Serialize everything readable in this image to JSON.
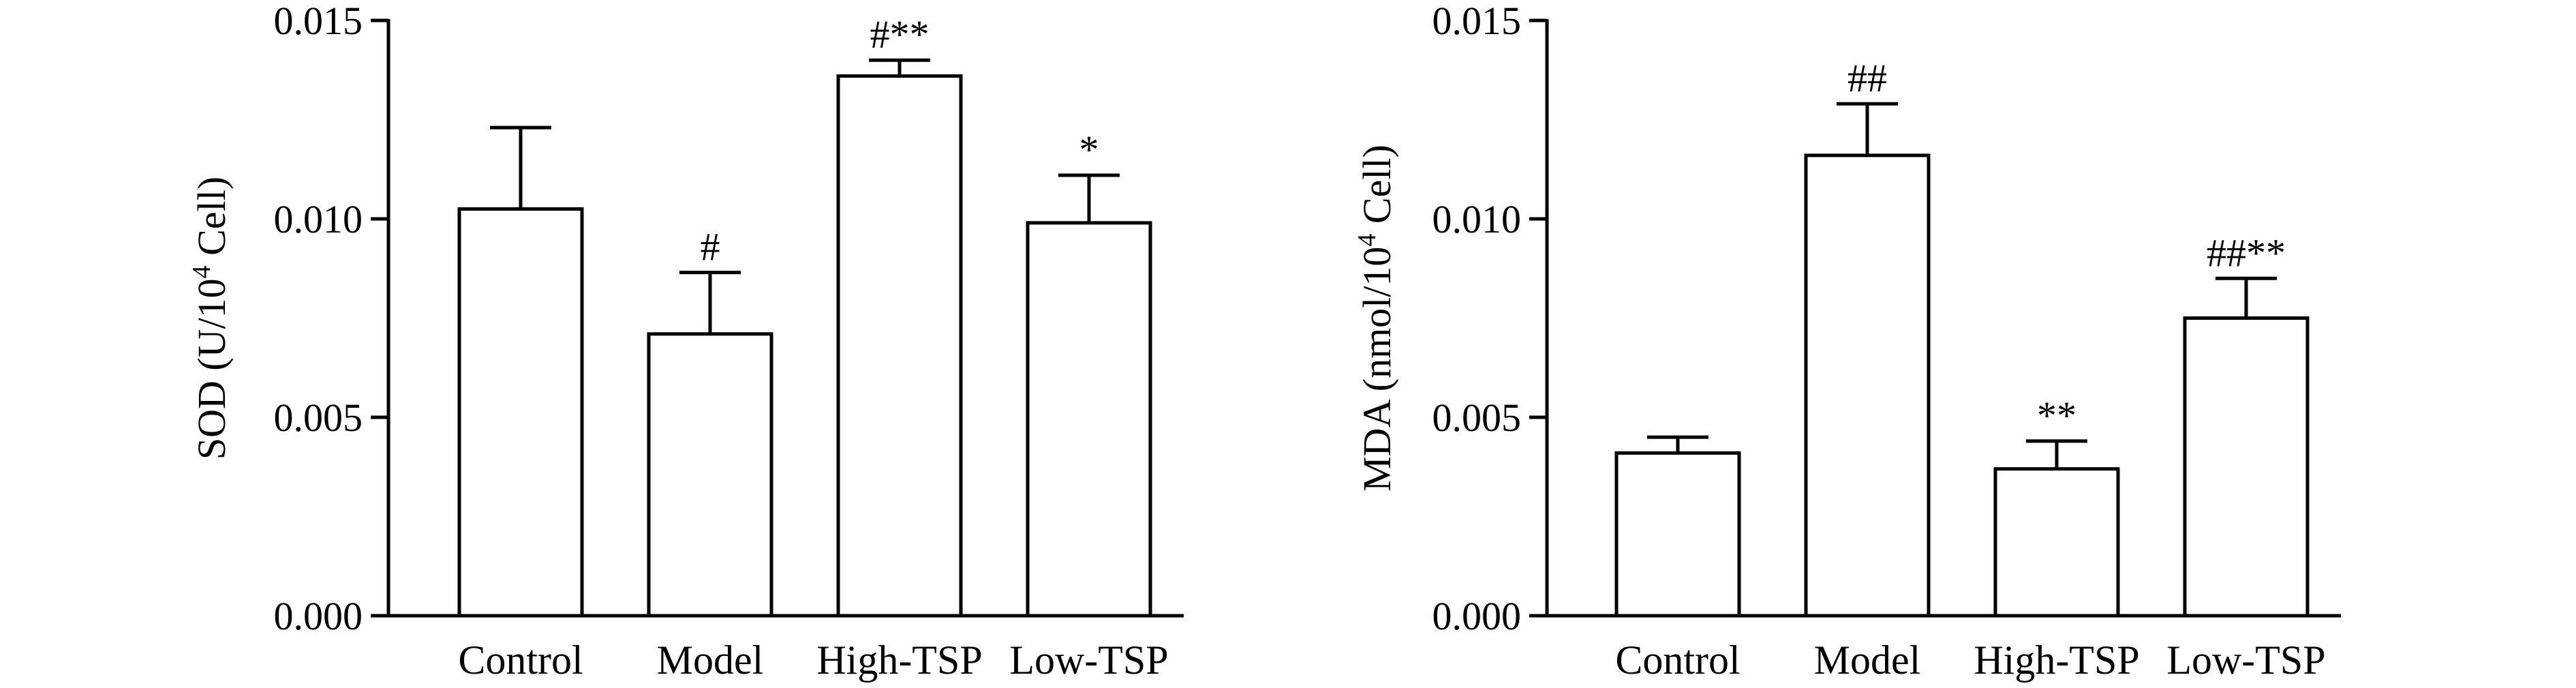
{
  "chart_data": [
    {
      "type": "bar",
      "ylabel_main": "SOD (U/10",
      "ylabel_sup": "4",
      "ylabel_end": " Cell)",
      "categories": [
        "Control",
        "Model",
        "High-TSP",
        "Low-TSP"
      ],
      "values": [
        0.01025,
        0.0071,
        0.0136,
        0.0099
      ],
      "errors": [
        0.00205,
        0.00155,
        0.0004,
        0.0012
      ],
      "annotations": [
        "",
        "#",
        "#**",
        "*"
      ],
      "ylim": [
        0,
        0.015
      ],
      "yticks": [
        "0.000",
        "0.005",
        "0.010",
        "0.015"
      ]
    },
    {
      "type": "bar",
      "ylabel_main": "MDA (nmol/10",
      "ylabel_sup": "4",
      "ylabel_end": " Cell)",
      "categories": [
        "Control",
        "Model",
        "High-TSP",
        "Low-TSP"
      ],
      "values": [
        0.0041,
        0.0116,
        0.0037,
        0.0075
      ],
      "errors": [
        0.0004,
        0.0013,
        0.0007,
        0.001
      ],
      "annotations": [
        "",
        "##",
        "**",
        "##**"
      ],
      "ylim": [
        0,
        0.015
      ],
      "yticks": [
        "0.000",
        "0.005",
        "0.010",
        "0.015"
      ]
    }
  ]
}
